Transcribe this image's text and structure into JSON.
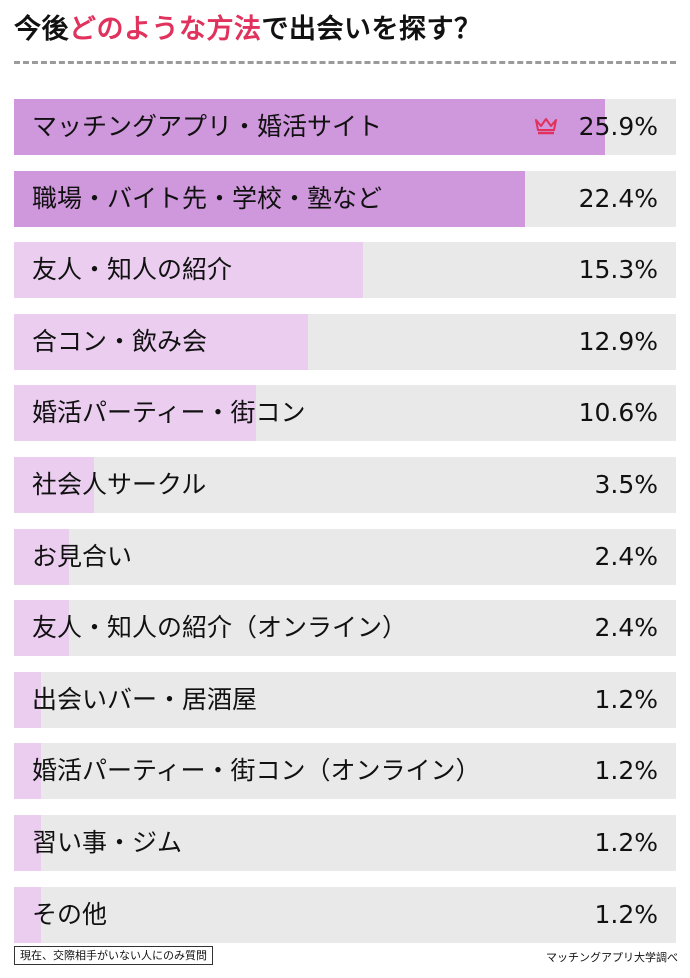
{
  "title": {
    "prefix": "今後",
    "highlight": "どのような方法",
    "suffix": "で出会いを探す？"
  },
  "colors": {
    "accent": "#e0325c",
    "bar_top": "#cf97dc",
    "bar_other": "#ebcdf0",
    "track": "#e9e9e9"
  },
  "chart_data": {
    "type": "bar",
    "orientation": "horizontal",
    "categories": [
      "マッチングアプリ・婚活サイト",
      "職場・バイト先・学校・塾など",
      "友人・知人の紹介",
      "合コン・飲み会",
      "婚活パーティー・街コン",
      "社会人サークル",
      "お見合い",
      "友人・知人の紹介（オンライン）",
      "出会いバー・居酒屋",
      "婚活パーティー・街コン（オンライン）",
      "習い事・ジム",
      "その他"
    ],
    "values": [
      25.9,
      22.4,
      15.3,
      12.9,
      10.6,
      3.5,
      2.4,
      2.4,
      1.2,
      1.2,
      1.2,
      1.2
    ],
    "value_labels": [
      "25.9%",
      "22.4%",
      "15.3%",
      "12.9%",
      "10.6%",
      "3.5%",
      "2.4%",
      "2.4%",
      "1.2%",
      "1.2%",
      "1.2%",
      "1.2%"
    ],
    "xlim": [
      0,
      29
    ],
    "highlight_top": 2,
    "top_icon": "crown-icon",
    "grid": false,
    "legend": "none"
  },
  "footer": {
    "note": "現在、交際相手がいない人にのみ質問",
    "source": "マッチングアプリ大学調べ"
  }
}
